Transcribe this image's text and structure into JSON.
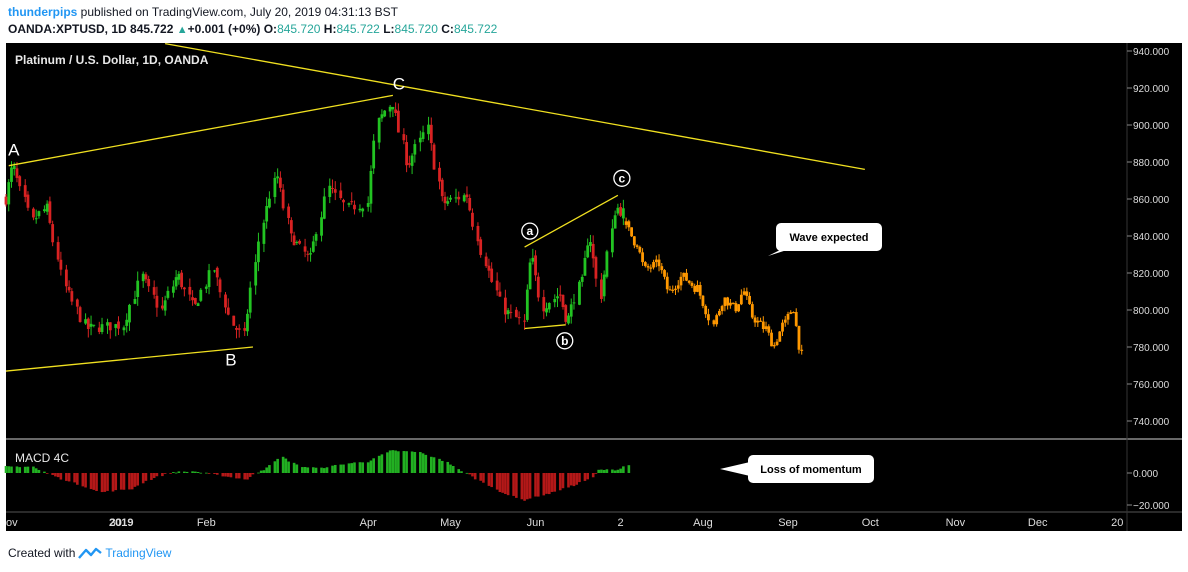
{
  "header": {
    "author": "thunderpips",
    "published_text": "published on TradingView.com, July 20, 2019 04:31:13 BST",
    "symbol": "OANDA:XPTUSD, 1D",
    "last_price": "845.722",
    "change": "+0.001 (+0%)",
    "open_label": "O:",
    "open": "845.720",
    "high_label": "H:",
    "high": "845.722",
    "low_label": "L:",
    "low": "845.720",
    "close_label": "C:",
    "close": "845.722"
  },
  "footer": {
    "created_with": "Created with",
    "brand": "TradingView"
  },
  "colors": {
    "background": "#000000",
    "up": "#22c322",
    "down": "#d82222",
    "wave": "#ff9800",
    "trendline": "#f0e020",
    "macd_up": "#22b022",
    "macd_down": "#b41818",
    "axis_text": "#dddddd"
  },
  "chart_data": [
    {
      "type": "candlestick",
      "title": "Platinum / U.S. Dollar, 1D, OANDA",
      "y_ticks": [
        "940.000",
        "920.000",
        "900.000",
        "880.000",
        "860.000",
        "840.000",
        "820.000",
        "800.000",
        "780.000",
        "760.000",
        "740.000"
      ],
      "ylim": [
        730,
        945
      ],
      "x_ticks": [
        "ov",
        "30",
        "2019",
        "Feb",
        "Apr",
        "May",
        "Jun",
        "2",
        "Aug",
        "Sep",
        "Oct",
        "Nov",
        "Dec",
        "20"
      ],
      "x_range": [
        "2018-11-20",
        "2019-12-31"
      ],
      "key_points": [
        {
          "label": "A",
          "date": "2018-11-21",
          "price": 878
        },
        {
          "label": "B",
          "date": "2019-02-14",
          "price": 784
        },
        {
          "label": "C",
          "date": "2019-04-10",
          "price": 916
        },
        {
          "label": "a",
          "date": "2019-05-31",
          "price": 834
        },
        {
          "label": "b",
          "date": "2019-06-12",
          "price": 792
        },
        {
          "label": "c",
          "date": "2019-07-01",
          "price": 862
        }
      ],
      "price_path": [
        {
          "date": "2018-11-20",
          "price": 860
        },
        {
          "date": "2018-11-23",
          "price": 876
        },
        {
          "date": "2018-11-30",
          "price": 848
        },
        {
          "date": "2018-12-05",
          "price": 855
        },
        {
          "date": "2018-12-12",
          "price": 812
        },
        {
          "date": "2018-12-20",
          "price": 790
        },
        {
          "date": "2019-01-02",
          "price": 792
        },
        {
          "date": "2019-01-09",
          "price": 818
        },
        {
          "date": "2019-01-16",
          "price": 800
        },
        {
          "date": "2019-01-22",
          "price": 818
        },
        {
          "date": "2019-01-28",
          "price": 802
        },
        {
          "date": "2019-02-04",
          "price": 822
        },
        {
          "date": "2019-02-11",
          "price": 792
        },
        {
          "date": "2019-02-15",
          "price": 786
        },
        {
          "date": "2019-02-22",
          "price": 848
        },
        {
          "date": "2019-02-27",
          "price": 872
        },
        {
          "date": "2019-03-05",
          "price": 838
        },
        {
          "date": "2019-03-11",
          "price": 828
        },
        {
          "date": "2019-03-18",
          "price": 866
        },
        {
          "date": "2019-03-25",
          "price": 855
        },
        {
          "date": "2019-04-01",
          "price": 858
        },
        {
          "date": "2019-04-05",
          "price": 902
        },
        {
          "date": "2019-04-10",
          "price": 912
        },
        {
          "date": "2019-04-16",
          "price": 880
        },
        {
          "date": "2019-04-23",
          "price": 898
        },
        {
          "date": "2019-04-29",
          "price": 858
        },
        {
          "date": "2019-05-07",
          "price": 862
        },
        {
          "date": "2019-05-14",
          "price": 826
        },
        {
          "date": "2019-05-21",
          "price": 800
        },
        {
          "date": "2019-05-28",
          "price": 793
        },
        {
          "date": "2019-05-31",
          "price": 826
        },
        {
          "date": "2019-06-04",
          "price": 802
        },
        {
          "date": "2019-06-10",
          "price": 808
        },
        {
          "date": "2019-06-13",
          "price": 796
        },
        {
          "date": "2019-06-18",
          "price": 815
        },
        {
          "date": "2019-06-21",
          "price": 838
        },
        {
          "date": "2019-06-25",
          "price": 808
        },
        {
          "date": "2019-07-01",
          "price": 855
        },
        {
          "date": "2019-07-03",
          "price": 853
        }
      ],
      "series": [
        {
          "name": "Wave expected",
          "x": [
            "2019-07-04",
            "2019-07-08",
            "2019-07-11",
            "2019-07-16",
            "2019-07-20",
            "2019-07-25",
            "2019-07-30",
            "2019-08-05",
            "2019-08-09",
            "2019-08-13",
            "2019-08-16",
            "2019-08-20",
            "2019-08-24",
            "2019-08-27",
            "2019-08-31",
            "2019-09-03",
            "2019-09-06"
          ],
          "y": [
            846,
            836,
            822,
            825,
            810,
            818,
            812,
            792,
            806,
            801,
            810,
            795,
            790,
            781,
            793,
            801,
            776
          ]
        }
      ],
      "trendlines": [
        {
          "from": {
            "date": "2018-11-21",
            "price": 878
          },
          "to": {
            "date": "2019-04-10",
            "price": 916
          }
        },
        {
          "from": {
            "date": "2018-11-20",
            "price": 767
          },
          "to": {
            "date": "2019-02-18",
            "price": 780
          }
        },
        {
          "from": {
            "date": "2019-01-17",
            "price": 944
          },
          "to": {
            "date": "2019-09-29",
            "price": 876
          }
        },
        {
          "from": {
            "date": "2019-05-28",
            "price": 834
          },
          "to": {
            "date": "2019-07-01",
            "price": 862
          }
        },
        {
          "from": {
            "date": "2019-05-28",
            "price": 790
          },
          "to": {
            "date": "2019-06-12",
            "price": 792
          }
        }
      ],
      "callouts": [
        {
          "text": "Wave expected",
          "anchor": {
            "date": "2019-08-19",
            "price": 828
          }
        }
      ]
    },
    {
      "type": "bar",
      "title": "MACD 4C",
      "y_ticks": [
        "0.000",
        "−20.000"
      ],
      "ylim": [
        -20,
        15
      ],
      "macd_path": [
        {
          "date": "2018-11-20",
          "value": 4
        },
        {
          "date": "2018-11-30",
          "value": 4
        },
        {
          "date": "2018-12-08",
          "value": -2
        },
        {
          "date": "2018-12-25",
          "value": -12
        },
        {
          "date": "2019-01-05",
          "value": -10
        },
        {
          "date": "2019-01-12",
          "value": -4
        },
        {
          "date": "2019-01-20",
          "value": 0.5
        },
        {
          "date": "2019-01-28",
          "value": 1
        },
        {
          "date": "2019-02-08",
          "value": -2
        },
        {
          "date": "2019-02-16",
          "value": -4
        },
        {
          "date": "2019-02-22",
          "value": 2
        },
        {
          "date": "2019-03-01",
          "value": 10
        },
        {
          "date": "2019-03-08",
          "value": 4
        },
        {
          "date": "2019-03-15",
          "value": 3
        },
        {
          "date": "2019-03-25",
          "value": 6
        },
        {
          "date": "2019-04-01",
          "value": 7
        },
        {
          "date": "2019-04-10",
          "value": 14
        },
        {
          "date": "2019-04-20",
          "value": 13
        },
        {
          "date": "2019-04-30",
          "value": 7
        },
        {
          "date": "2019-05-08",
          "value": -1
        },
        {
          "date": "2019-05-20",
          "value": -12
        },
        {
          "date": "2019-05-28",
          "value": -17
        },
        {
          "date": "2019-06-06",
          "value": -13
        },
        {
          "date": "2019-06-15",
          "value": -8
        },
        {
          "date": "2019-06-22",
          "value": -3
        },
        {
          "date": "2019-06-25",
          "value": 2
        },
        {
          "date": "2019-07-01",
          "value": 2
        },
        {
          "date": "2019-07-05",
          "value": 5
        }
      ],
      "callouts": [
        {
          "text": "Loss of momentum",
          "anchor": {
            "date": "2019-07-12",
            "value": 2
          }
        }
      ]
    }
  ]
}
